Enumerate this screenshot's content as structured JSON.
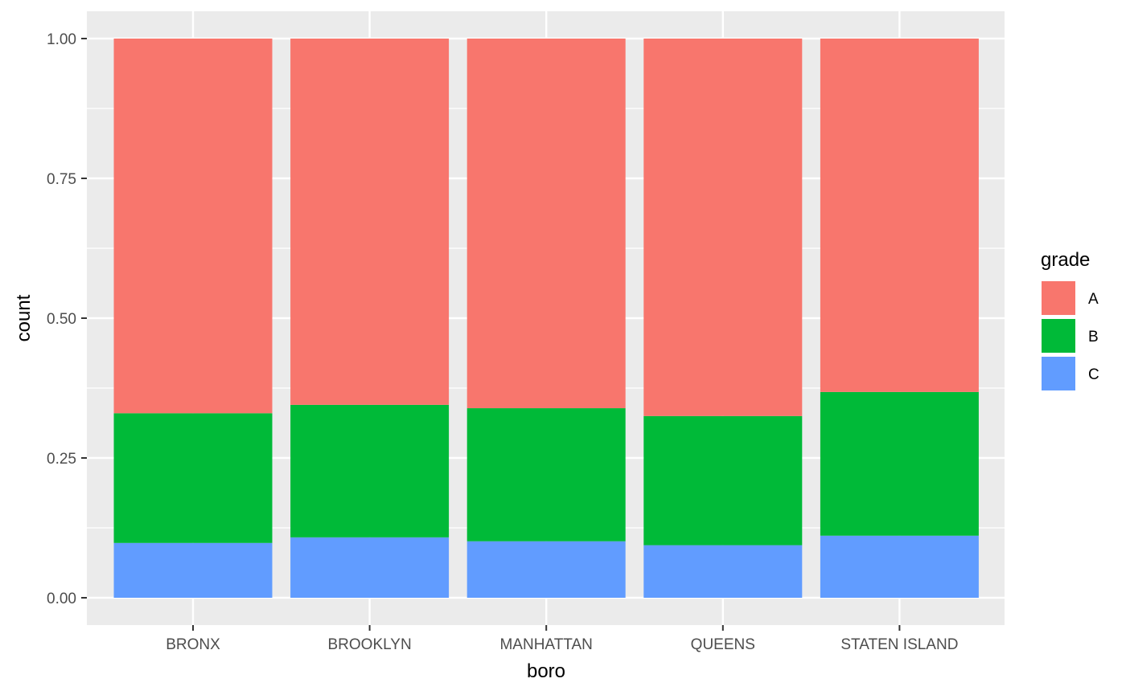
{
  "chart_data": {
    "type": "bar",
    "stacked": true,
    "categories": [
      "BRONX",
      "BROOKLYN",
      "MANHATTAN",
      "QUEENS",
      "STATEN ISLAND"
    ],
    "series": [
      {
        "name": "A",
        "color": "#F8766D",
        "values": [
          0.67,
          0.655,
          0.661,
          0.675,
          0.632
        ]
      },
      {
        "name": "B",
        "color": "#00BA38",
        "values": [
          0.232,
          0.237,
          0.238,
          0.231,
          0.257
        ]
      },
      {
        "name": "C",
        "color": "#619CFF",
        "values": [
          0.098,
          0.108,
          0.101,
          0.094,
          0.111
        ]
      }
    ],
    "stack_order": [
      "C",
      "B",
      "A"
    ],
    "xlabel": "boro",
    "ylabel": "count",
    "ylim": [
      0,
      1
    ],
    "yticks": [
      0,
      0.25,
      0.5,
      0.75,
      1.0
    ],
    "ytick_labels": [
      "0.00",
      "0.25",
      "0.50",
      "0.75",
      "1.00"
    ],
    "legend": {
      "title": "grade",
      "position": "right"
    },
    "panel_background": "#EBEBEB",
    "grid": true
  }
}
